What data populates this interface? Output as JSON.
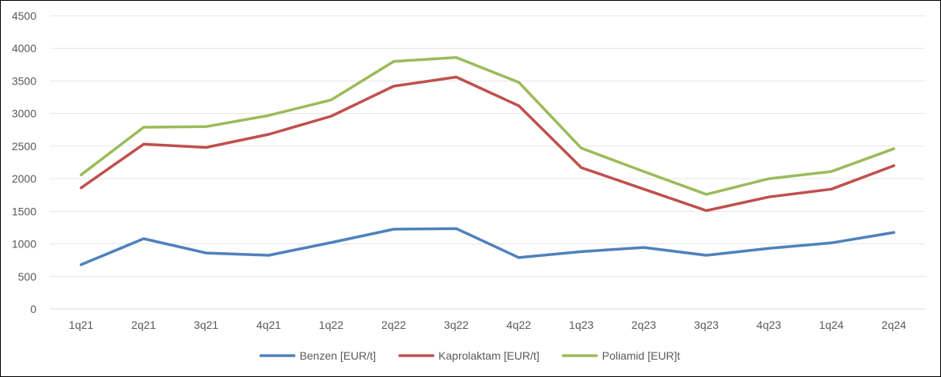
{
  "chart_data": {
    "type": "line",
    "title": "",
    "xlabel": "",
    "ylabel": "",
    "categories": [
      "1q21",
      "2q21",
      "3q21",
      "4q21",
      "1q22",
      "2q22",
      "3q22",
      "4q22",
      "1q23",
      "2q23",
      "3q23",
      "4q23",
      "1q24",
      "2q24"
    ],
    "ylim": [
      0,
      4500
    ],
    "yticks": [
      0,
      500,
      1000,
      1500,
      2000,
      2500,
      3000,
      3500,
      4000,
      4500
    ],
    "grid": true,
    "legend_position": "bottom",
    "series": [
      {
        "name": "Benzen [EUR/t]",
        "color": "#4F81BD",
        "values": [
          680,
          1080,
          860,
          825,
          1020,
          1225,
          1235,
          790,
          880,
          945,
          825,
          930,
          1015,
          1175
        ]
      },
      {
        "name": "Kaprolaktam [EUR/t]",
        "color": "#C0504D",
        "values": [
          1860,
          2530,
          2480,
          2680,
          2960,
          3420,
          3560,
          3120,
          2170,
          1840,
          1510,
          1720,
          1840,
          2200
        ]
      },
      {
        "name": "Poliamid [EUR]t",
        "color": "#9BBB59",
        "values": [
          2060,
          2790,
          2800,
          2970,
          3210,
          3800,
          3860,
          3480,
          2470,
          2110,
          1760,
          2000,
          2110,
          2460
        ]
      }
    ]
  }
}
